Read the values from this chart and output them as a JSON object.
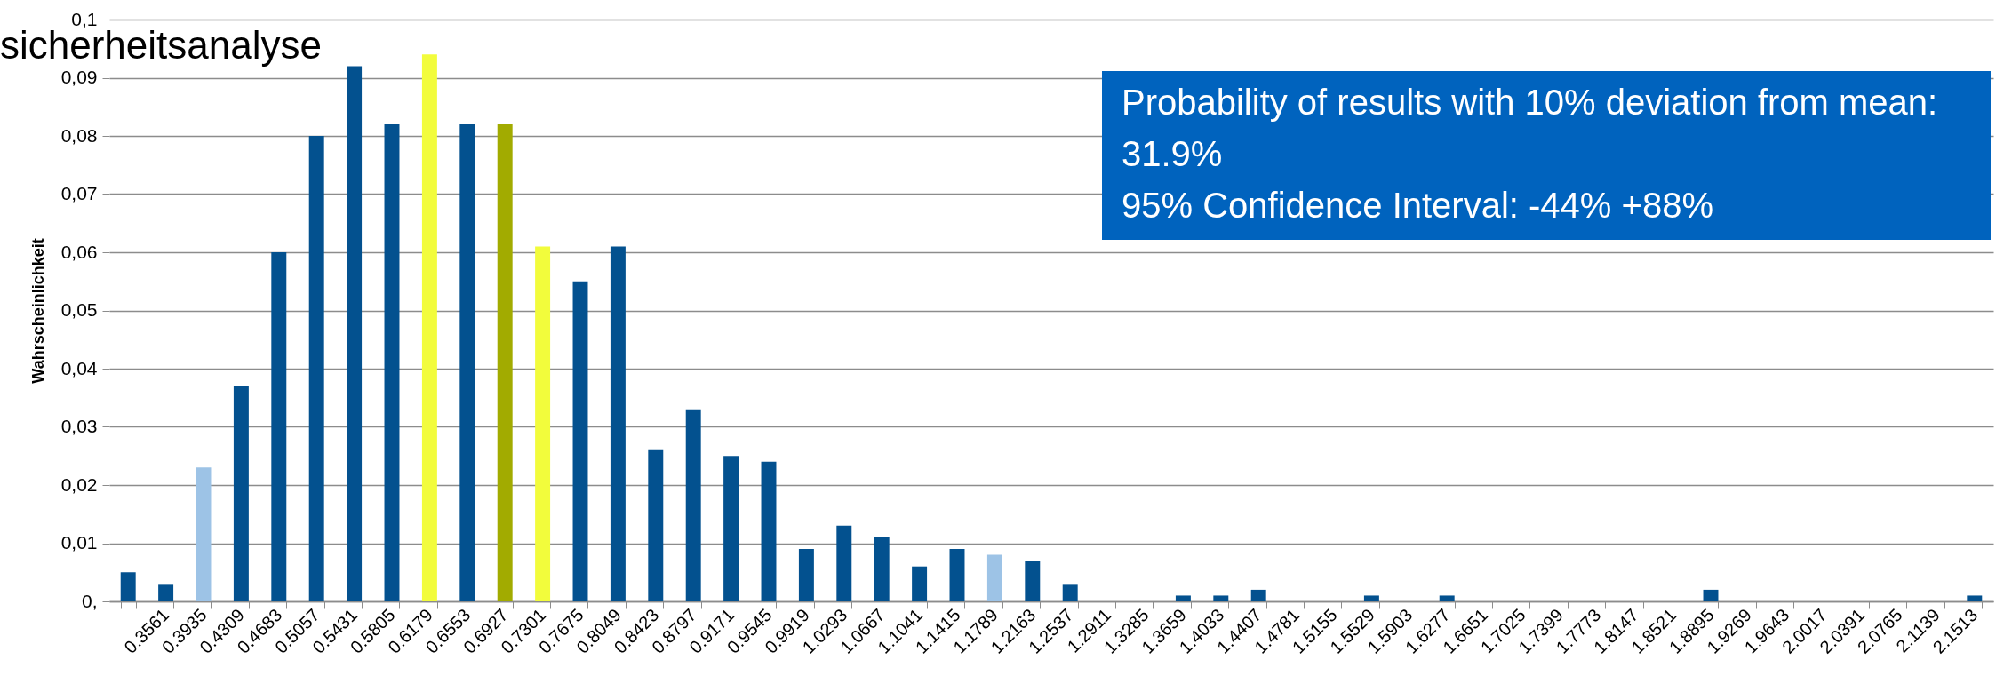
{
  "chart_data": {
    "type": "bar",
    "title": "sicherheitsanalyse",
    "ylabel": "Wahrscheinlichkeit",
    "categories": [
      null,
      "0.3561",
      "0.3935",
      "0.4309",
      "0.4683",
      "0.5057",
      "0.5431",
      "0.5805",
      "0.6179",
      "0.6553",
      "0.6927",
      "0.7301",
      "0.7675",
      "0.8049",
      "0.8423",
      "0.8797",
      "0.9171",
      "0.9545",
      "0.9919",
      "1.0293",
      "1.0667",
      "1.1041",
      "1.1415",
      "1.1789",
      "1.2163",
      "1.2537",
      "1.2911",
      "1.3285",
      "1.3659",
      "1.4033",
      "1.4407",
      "1.4781",
      "1.5155",
      "1.5529",
      "1.5903",
      "1.6277",
      "1.6651",
      "1.7025",
      "1.7399",
      "1.7773",
      "1.8147",
      "1.8521",
      "1.8895",
      "1.9269",
      "1.9643",
      "2.0017",
      "2.0391",
      "2.0765",
      "2.1139",
      "2.1513"
    ],
    "values": [
      0.005,
      0.003,
      0.023,
      0.037,
      0.06,
      0.08,
      0.092,
      0.082,
      0.094,
      0.082,
      0.082,
      0.061,
      0.055,
      0.061,
      0.026,
      0.033,
      0.025,
      0.024,
      0.009,
      0.013,
      0.011,
      0.006,
      0.009,
      0.008,
      0.007,
      0.003,
      0,
      0,
      0.001,
      0.001,
      0.002,
      0,
      0,
      0.001,
      0,
      0.001,
      0,
      0,
      0,
      0,
      0,
      0,
      0.002,
      0,
      0,
      0,
      0,
      0,
      0,
      0.001
    ],
    "colors": [
      "#03518f",
      "#03518f",
      "#9dc3e6",
      "#03518f",
      "#03518f",
      "#03518f",
      "#03518f",
      "#03518f",
      "#f2fc3c",
      "#03518f",
      "#a2ab00",
      "#f2fc3c",
      "#03518f",
      "#03518f",
      "#03518f",
      "#03518f",
      "#03518f",
      "#03518f",
      "#03518f",
      "#03518f",
      "#03518f",
      "#03518f",
      "#03518f",
      "#9dc3e6",
      "#03518f",
      "#03518f",
      "#03518f",
      "#03518f",
      "#03518f",
      "#03518f",
      "#03518f",
      "#03518f",
      "#03518f",
      "#03518f",
      "#03518f",
      "#03518f",
      "#03518f",
      "#03518f",
      "#03518f",
      "#03518f",
      "#03518f",
      "#03518f",
      "#03518f",
      "#03518f",
      "#03518f",
      "#03518f",
      "#03518f",
      "#03518f",
      "#03518f",
      "#03518f"
    ],
    "ylim": [
      0,
      0.1
    ],
    "yticks": [
      {
        "value": 0,
        "label": "0,"
      },
      {
        "value": 0.01,
        "label": "0,01"
      },
      {
        "value": 0.02,
        "label": "0,02"
      },
      {
        "value": 0.03,
        "label": "0,03"
      },
      {
        "value": 0.04,
        "label": "0,04"
      },
      {
        "value": 0.05,
        "label": "0,05"
      },
      {
        "value": 0.06,
        "label": "0,06"
      },
      {
        "value": 0.07,
        "label": "0,07"
      },
      {
        "value": 0.08,
        "label": "0,08"
      },
      {
        "value": 0.09,
        "label": "0,09"
      },
      {
        "value": 0.1,
        "label": "0,1"
      }
    ],
    "grid": "y",
    "annotations": [
      "Probability of results with 10% deviation from mean: 31.9%",
      "95% Confidence Interval: -44% +88%"
    ]
  }
}
